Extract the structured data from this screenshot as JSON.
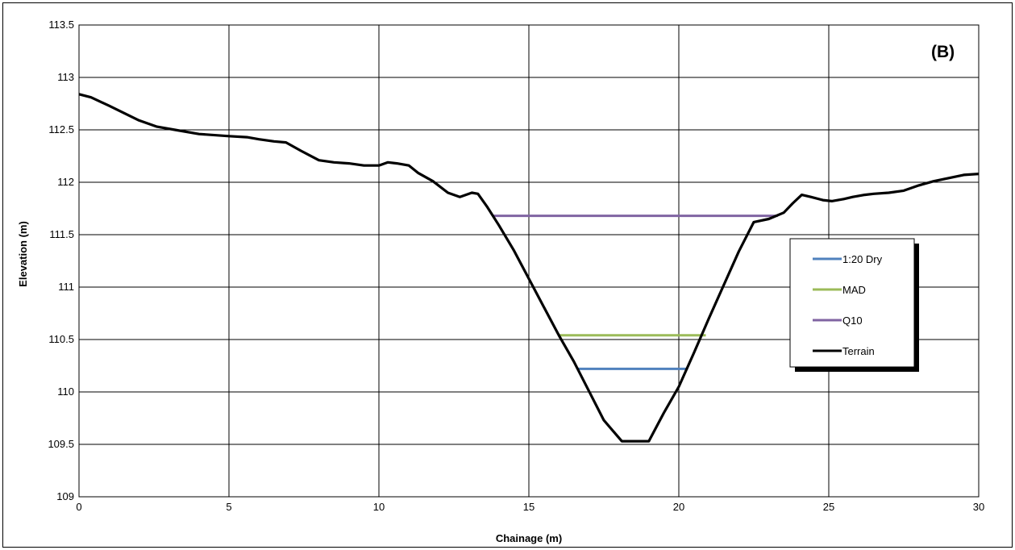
{
  "chart_data": {
    "type": "line",
    "panel_label": "(B)",
    "xlabel": "Chainage (m)",
    "ylabel": "Elevation (m)",
    "xlim": [
      0,
      30
    ],
    "ylim": [
      109,
      113.5
    ],
    "xticks": [
      0,
      5,
      10,
      15,
      20,
      25,
      30
    ],
    "yticks": [
      109,
      109.5,
      110,
      110.5,
      111,
      111.5,
      112,
      112.5,
      113,
      113.5
    ],
    "ytick_labels": [
      "109",
      "109.5",
      "110",
      "110.5",
      "111",
      "111.5",
      "112",
      "112.5",
      "113",
      "113.5"
    ],
    "grid": true,
    "legend_position": "right",
    "series": [
      {
        "name": "1:20 Dry",
        "color": "#4f81bd",
        "x": [
          16.6,
          20.3
        ],
        "y": [
          110.22,
          110.22
        ]
      },
      {
        "name": "MAD",
        "color": "#9bbb59",
        "x": [
          16.0,
          20.9
        ],
        "y": [
          110.54,
          110.54
        ]
      },
      {
        "name": "Q10",
        "color": "#8064a2",
        "x": [
          13.8,
          23.3
        ],
        "y": [
          111.68,
          111.68
        ]
      },
      {
        "name": "Terrain",
        "color": "#000000",
        "x": [
          0,
          0.4,
          1,
          1.5,
          2,
          2.6,
          3.2,
          4,
          5,
          5.6,
          6,
          6.5,
          6.9,
          7.4,
          8,
          8.5,
          9,
          9.5,
          10,
          10.3,
          10.6,
          11,
          11.3,
          11.8,
          12.3,
          12.7,
          13.1,
          13.3,
          13.6,
          14,
          14.5,
          15,
          15.5,
          16,
          16.5,
          17,
          17.5,
          18.1,
          18.5,
          19,
          19.5,
          20,
          20.5,
          21,
          21.5,
          22,
          22.5,
          23,
          23.5,
          23.8,
          24.1,
          24.4,
          24.8,
          25.1,
          25.5,
          25.8,
          26.2,
          26.5,
          27,
          27.5,
          28,
          28.5,
          29,
          29.5,
          30
        ],
        "y": [
          112.84,
          112.81,
          112.73,
          112.66,
          112.59,
          112.53,
          112.5,
          112.46,
          112.44,
          112.43,
          112.41,
          112.39,
          112.38,
          112.3,
          112.21,
          112.19,
          112.18,
          112.16,
          112.16,
          112.19,
          112.18,
          112.16,
          112.09,
          112.01,
          111.9,
          111.86,
          111.9,
          111.89,
          111.77,
          111.59,
          111.35,
          111.08,
          110.81,
          110.54,
          110.29,
          110.01,
          109.73,
          109.53,
          109.53,
          109.53,
          109.8,
          110.05,
          110.37,
          110.7,
          111.02,
          111.34,
          111.62,
          111.65,
          111.71,
          111.8,
          111.88,
          111.86,
          111.83,
          111.82,
          111.84,
          111.86,
          111.88,
          111.89,
          111.9,
          111.92,
          111.97,
          112.01,
          112.04,
          112.07,
          112.08
        ]
      }
    ]
  }
}
